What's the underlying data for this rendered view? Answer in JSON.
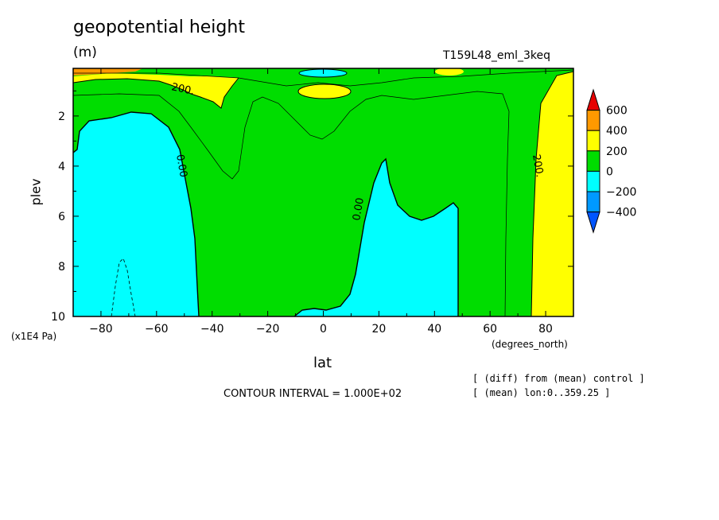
{
  "chart_data": {
    "type": "contour",
    "title": "geopotential height",
    "units": "(m)",
    "run_label": "T159L48_eml_3keq",
    "xlabel": "lat",
    "x_units": "(degrees_north)",
    "ylabel": "plev",
    "y_units": "(x1E4 Pa)",
    "xlim": [
      -90,
      90
    ],
    "ylim": [
      0.1,
      10
    ],
    "y_inverted": true,
    "xticks": [
      -80,
      -60,
      -40,
      -20,
      0,
      20,
      40,
      60,
      80
    ],
    "yticks": [
      2,
      4,
      6,
      8,
      10
    ],
    "contour_interval": "CONTOUR INTERVAL = 1.000E+02",
    "notes": [
      "[ (diff) from (mean) control ]",
      "[ (mean) lon:0..359.25 ]"
    ],
    "contour_labels": [
      "200.",
      "0.00",
      "0.00",
      "200."
    ],
    "colorbar": {
      "labels": [
        "600",
        "400",
        "200",
        "0",
        "-200",
        "-400"
      ],
      "colors": [
        "#e60000",
        "#ff9900",
        "#ffff00",
        "#00dd00",
        "#00ffff",
        "#0099ff",
        "#0055ff"
      ]
    },
    "regions": [
      {
        "level": "0..200",
        "color": "#00dd00",
        "location": "background"
      },
      {
        "level": "-200..0",
        "color": "#00ffff",
        "location": "lat -90..-45, plev 2..10"
      },
      {
        "level": "-200..0",
        "color": "#00ffff",
        "location": "lat -8..48, plev 4..10"
      },
      {
        "level": "200..400",
        "color": "#ffff00",
        "location": "lat 73..90, plev 0.1..10"
      },
      {
        "level": "200..400",
        "color": "#ffff00",
        "location": "lat -45..-25, plev 0.1..1.3"
      },
      {
        "level": "200..400",
        "color": "#ffff00",
        "location": "lat -10..10, plev 0.5..1"
      },
      {
        "level": "-200..0",
        "color": "#00ffff",
        "location": "lat -8..8, plev 0.1..0.3"
      },
      {
        "level": "400..600",
        "color": "#ff9900",
        "location": "lat -90..-60, plev 0.1"
      }
    ]
  }
}
